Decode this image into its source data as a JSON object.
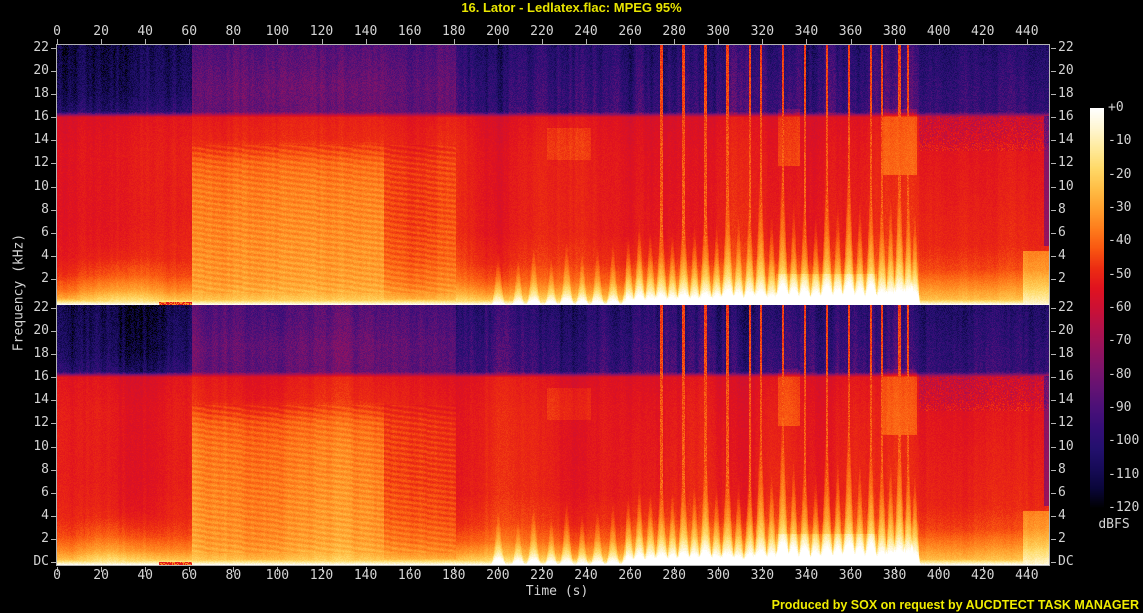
{
  "title": "16. Lator - Ledlatex.flac: MPEG 95%",
  "footer": "Produced by SOX on request by AUCDTECT TASK MANAGER",
  "colors": {
    "background": "#000000",
    "title_text": "#e9e500",
    "footer_text": "#f0ec00",
    "axis_text": "#d4d4d4",
    "axis_line": "#b4b4b4"
  },
  "chart_data": {
    "type": "heatmap",
    "subtype": "dual-channel audio spectrogram",
    "title": "16. Lator - Ledlatex.flac: MPEG 95%",
    "time_axis": {
      "label": "Time (s)",
      "min": 0,
      "max": 450,
      "tick_step": 20,
      "ticks": [
        0,
        20,
        40,
        60,
        80,
        100,
        120,
        140,
        160,
        180,
        200,
        220,
        240,
        260,
        280,
        300,
        320,
        340,
        360,
        380,
        400,
        420,
        440
      ]
    },
    "freq_axis": {
      "label": "Frequency (kHz)",
      "min_label": "DC",
      "max": 22,
      "tick_step": 2,
      "ticks": [
        22,
        20,
        18,
        16,
        14,
        12,
        10,
        8,
        6,
        4,
        2
      ]
    },
    "level_axis": {
      "label": "dBFS",
      "min": -120,
      "max": 0,
      "tick_step": 10,
      "ticks": [
        "+0",
        "-10",
        "-20",
        "-30",
        "-40",
        "-50",
        "-60",
        "-70",
        "-80",
        "-90",
        "-100",
        "-110",
        "-120"
      ]
    },
    "channels": [
      "channel-1-top",
      "channel-2-bottom"
    ],
    "legend_position": "right colorbar",
    "grid": false,
    "palette": [
      [
        0,
        "#ffffff"
      ],
      [
        -6,
        "#fff6d2"
      ],
      [
        -12,
        "#ffea9c"
      ],
      [
        -18,
        "#ffd968"
      ],
      [
        -24,
        "#ffbe46"
      ],
      [
        -30,
        "#ffa02e"
      ],
      [
        -36,
        "#fe7d1c"
      ],
      [
        -42,
        "#f95711"
      ],
      [
        -48,
        "#ec2c12"
      ],
      [
        -54,
        "#e0121f"
      ],
      [
        -60,
        "#cb1034"
      ],
      [
        -66,
        "#b1114b"
      ],
      [
        -72,
        "#96125c"
      ],
      [
        -78,
        "#7c136a"
      ],
      [
        -84,
        "#631273"
      ],
      [
        -90,
        "#4a1078"
      ],
      [
        -96,
        "#340e77"
      ],
      [
        -102,
        "#23106e"
      ],
      [
        -108,
        "#170b58"
      ],
      [
        -114,
        "#0a063a"
      ],
      [
        -120,
        "#000000"
      ]
    ],
    "segments": [
      {
        "t": [
          0,
          61
        ],
        "stripeTop": 9,
        "stripeMid": 2.2,
        "ditherTop": 6,
        "ditherMid": 1.8,
        "harm": 0,
        "block": 2,
        "points": [
          [
            0,
            -13
          ],
          [
            0.35,
            -24
          ],
          [
            1.2,
            -36
          ],
          [
            2.5,
            -46
          ],
          [
            4,
            -51
          ],
          [
            7,
            -53
          ],
          [
            13,
            -53
          ],
          [
            15.9,
            -55
          ],
          [
            16.35,
            -102
          ],
          [
            18,
            -108
          ],
          [
            20,
            -110
          ],
          [
            22,
            -112
          ]
        ]
      },
      {
        "t": [
          61,
          148
        ],
        "stripeTop": 5,
        "stripeMid": 2.0,
        "ditherTop": 5,
        "ditherMid": 1.8,
        "harm": 1,
        "block": 3,
        "points": [
          [
            0,
            -15
          ],
          [
            0.4,
            -22
          ],
          [
            1,
            -28
          ],
          [
            2,
            -31
          ],
          [
            4,
            -33
          ],
          [
            7,
            -35
          ],
          [
            10,
            -37
          ],
          [
            12,
            -40
          ],
          [
            13.2,
            -46
          ],
          [
            14,
            -50
          ],
          [
            15.9,
            -52
          ],
          [
            16.35,
            -84
          ],
          [
            18.5,
            -83
          ],
          [
            20,
            -86
          ],
          [
            22,
            -89
          ]
        ]
      },
      {
        "t": [
          148,
          181
        ],
        "stripeTop": 5,
        "stripeMid": 2.0,
        "ditherTop": 5,
        "ditherMid": 1.8,
        "harm": 1,
        "block": 3,
        "points": [
          [
            0,
            -17
          ],
          [
            0.4,
            -25
          ],
          [
            1,
            -32
          ],
          [
            2,
            -37
          ],
          [
            4,
            -42
          ],
          [
            7,
            -45
          ],
          [
            10,
            -46
          ],
          [
            12,
            -47
          ],
          [
            13.2,
            -50
          ],
          [
            15.9,
            -53
          ],
          [
            16.35,
            -86
          ],
          [
            18.5,
            -86
          ],
          [
            20,
            -88
          ],
          [
            22,
            -91
          ]
        ]
      },
      {
        "t": [
          181,
          258
        ],
        "stripeTop": 10,
        "stripeMid": 2.2,
        "ditherTop": 6,
        "ditherMid": 1.8,
        "harm": 0,
        "block": 3,
        "points": [
          [
            0,
            -12
          ],
          [
            0.4,
            -20
          ],
          [
            1,
            -30
          ],
          [
            2,
            -40
          ],
          [
            3.5,
            -47
          ],
          [
            6,
            -51
          ],
          [
            13,
            -52
          ],
          [
            15.9,
            -54
          ],
          [
            16.35,
            -95
          ],
          [
            18.5,
            -97
          ],
          [
            22,
            -102
          ]
        ]
      },
      {
        "t": [
          258,
          391
        ],
        "stripeTop": 10,
        "stripeMid": 2.2,
        "ditherTop": 6,
        "ditherMid": 1.8,
        "harm": 0,
        "block": 3,
        "points": [
          [
            0,
            -9
          ],
          [
            0.5,
            -16
          ],
          [
            1.2,
            -26
          ],
          [
            2.5,
            -38
          ],
          [
            4,
            -46
          ],
          [
            6,
            -50
          ],
          [
            13,
            -52
          ],
          [
            15.9,
            -54
          ],
          [
            16.35,
            -93
          ],
          [
            18.5,
            -95
          ],
          [
            22,
            -100
          ]
        ]
      },
      {
        "t": [
          391,
          451
        ],
        "stripeTop": 7,
        "stripeMid": 2.2,
        "ditherTop": 6,
        "ditherMid": 1.8,
        "harm": 0,
        "block": 2,
        "speckle": [
          13,
          16,
          7
        ],
        "points": [
          [
            0,
            -19
          ],
          [
            0.6,
            -26
          ],
          [
            1.5,
            -34
          ],
          [
            3,
            -45
          ],
          [
            5,
            -50
          ],
          [
            9,
            -52
          ],
          [
            13,
            -54
          ],
          [
            14,
            -58
          ],
          [
            15.9,
            -61
          ],
          [
            16.35,
            -97
          ],
          [
            18.5,
            -99
          ],
          [
            22,
            -104
          ]
        ]
      }
    ],
    "hot_patches": [
      {
        "t": [
          6,
          52
        ],
        "f": [
          0,
          5
        ],
        "lift": 9,
        "tri": 1
      },
      {
        "t": [
          222,
          242
        ],
        "f": [
          12.3,
          15
        ],
        "lift": 5,
        "tri": 0
      },
      {
        "t": [
          327,
          337
        ],
        "f": [
          11.8,
          16.6
        ],
        "lift": 8,
        "tri": 0
      },
      {
        "t": [
          374,
          390
        ],
        "f": [
          11,
          16.6
        ],
        "lift": 9,
        "tri": 0
      },
      {
        "t": [
          326,
          372
        ],
        "f": [
          0,
          2.6
        ],
        "lift": 6,
        "tri": 0
      },
      {
        "t": [
          438,
          450.6
        ],
        "f": [
          0,
          4.6
        ],
        "lift": 13,
        "tri": 0
      },
      {
        "t": [
          447.6,
          450.6
        ],
        "f": [
          5,
          16
        ],
        "lift": -22,
        "tri": 0
      }
    ],
    "flame_events": [
      [
        200,
        4.5,
        1.8,
        20,
        0
      ],
      [
        209,
        4,
        1.6,
        18,
        0
      ],
      [
        216,
        5,
        1.8,
        20,
        0
      ],
      [
        224,
        4,
        1.6,
        18,
        0
      ],
      [
        231,
        5.5,
        1.8,
        21,
        0
      ],
      [
        238,
        4.5,
        1.6,
        19,
        0
      ],
      [
        245,
        5,
        1.7,
        20,
        0
      ],
      [
        252,
        5.5,
        1.7,
        21,
        0
      ],
      [
        259,
        6,
        1.7,
        23,
        0
      ],
      [
        264,
        7,
        1.7,
        25,
        0
      ],
      [
        269,
        6.5,
        1.7,
        24,
        0
      ],
      [
        274,
        8.5,
        1.8,
        26,
        1
      ],
      [
        279,
        6.5,
        1.6,
        24,
        0
      ],
      [
        284,
        9,
        1.8,
        27,
        1
      ],
      [
        289,
        7,
        1.6,
        24,
        0
      ],
      [
        294,
        10,
        1.8,
        27,
        1
      ],
      [
        299,
        7,
        1.6,
        25,
        0
      ],
      [
        304,
        11,
        1.8,
        28,
        1
      ],
      [
        309,
        7.5,
        1.6,
        25,
        0
      ],
      [
        314,
        9,
        1.7,
        27,
        1
      ],
      [
        319,
        12,
        1.8,
        28,
        1
      ],
      [
        324,
        8,
        1.6,
        25,
        0
      ],
      [
        329,
        13,
        1.8,
        29,
        1
      ],
      [
        334,
        9,
        1.6,
        26,
        0
      ],
      [
        339,
        10,
        1.7,
        27,
        1
      ],
      [
        344,
        8,
        1.6,
        25,
        0
      ],
      [
        349,
        12,
        1.8,
        28,
        1
      ],
      [
        354,
        9,
        1.6,
        26,
        0
      ],
      [
        359,
        13,
        1.8,
        29,
        1
      ],
      [
        364,
        9,
        1.6,
        26,
        0
      ],
      [
        369,
        11,
        1.7,
        28,
        1
      ],
      [
        374,
        10,
        1.6,
        27,
        1
      ],
      [
        378,
        9,
        1.5,
        26,
        0
      ],
      [
        382,
        12,
        1.7,
        28,
        1
      ],
      [
        386,
        10,
        1.5,
        27,
        1
      ],
      [
        389,
        8,
        1.4,
        25,
        0
      ]
    ],
    "dc_dim": [
      46,
      61
    ]
  }
}
